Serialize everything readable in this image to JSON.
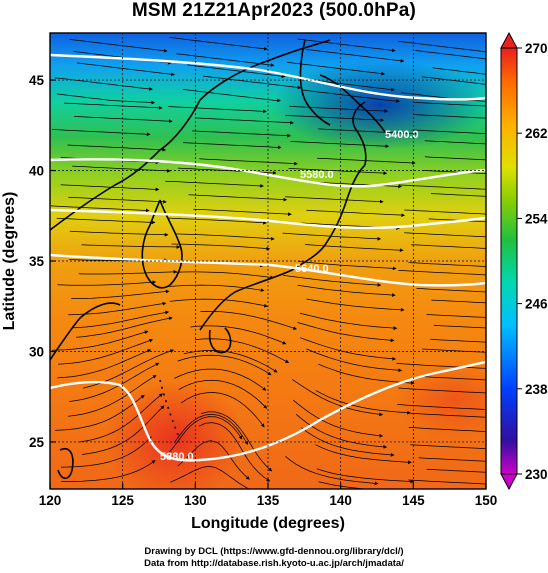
{
  "title": "MSM 21Z21Apr2023 (500.0hPa)",
  "map": {
    "x_label": "Longitude (degrees)",
    "y_label": "Latitude  (degrees)",
    "x_ticks": [
      "120",
      "125",
      "130",
      "135",
      "140",
      "145",
      "150"
    ],
    "y_ticks": [
      "25",
      "30",
      "35",
      "40",
      "45"
    ],
    "lon_range": [
      120,
      150
    ],
    "lat_range": [
      22.4,
      47.6
    ],
    "gridlines": true
  },
  "colorbar": {
    "ticks": [
      "230",
      "238",
      "246",
      "254",
      "262",
      "270"
    ],
    "min": 230,
    "max": 270,
    "colors": [
      "#cc00cc",
      "#1010a0",
      "#0040ff",
      "#00b0ff",
      "#00d8c0",
      "#10c040",
      "#80d000",
      "#e0e000",
      "#ffb000",
      "#ff7000",
      "#ee2020"
    ]
  },
  "contours": [
    {
      "label": "5880.0"
    },
    {
      "label": "5640.0"
    },
    {
      "label": "5580.0"
    },
    {
      "label": "5400.0"
    }
  ],
  "credits": {
    "line1": "Drawing by DCL (https://www.gfd-dennou.org/library/dcl/)",
    "line2": "Data from http://database.rish.kyoto-u.ac.jp/arch/jmadata/"
  }
}
